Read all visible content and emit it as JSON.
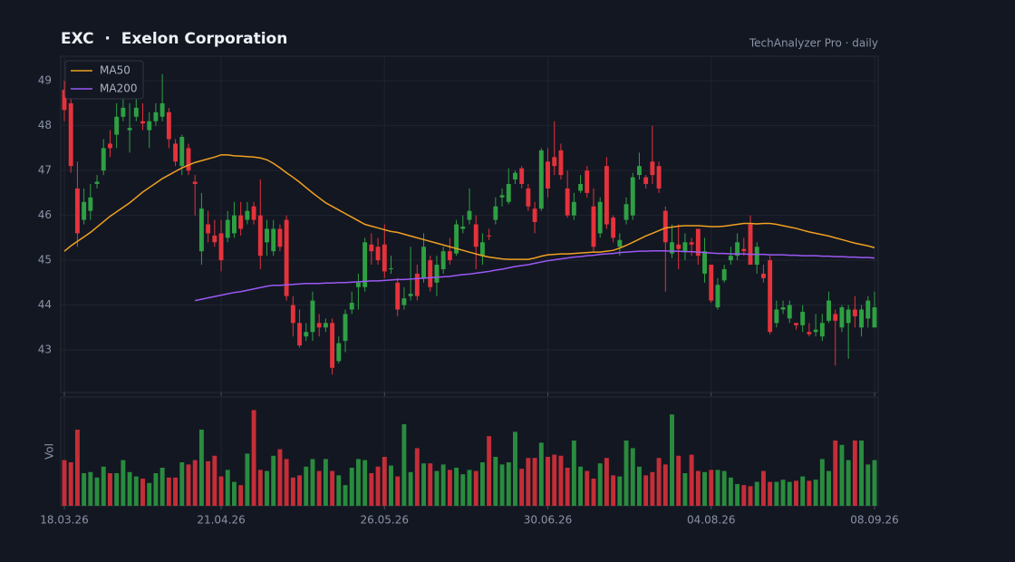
{
  "chart_data": {
    "type": "candlestick",
    "title": "EXC  ·  Exelon Corporation",
    "subtitle": "TechAnalyzer Pro · daily",
    "volume_label": "Vol",
    "up_color": "#2ea043",
    "down_color": "#e5323b",
    "ylim": [
      42.05,
      49.55
    ],
    "yticks": [
      43,
      44,
      45,
      46,
      47,
      48,
      49
    ],
    "vlim": [
      0,
      100
    ],
    "grid": true,
    "legend": "top-left",
    "categories": [
      "18.03.26",
      null,
      null,
      null,
      null,
      null,
      null,
      null,
      null,
      null,
      null,
      null,
      null,
      null,
      null,
      null,
      null,
      null,
      null,
      null,
      null,
      null,
      null,
      null,
      "21.04.26",
      null,
      null,
      null,
      null,
      null,
      null,
      null,
      null,
      null,
      null,
      null,
      null,
      null,
      null,
      null,
      null,
      null,
      null,
      null,
      null,
      null,
      null,
      null,
      null,
      "26.05.26",
      null,
      null,
      null,
      null,
      null,
      null,
      null,
      null,
      null,
      null,
      null,
      null,
      null,
      null,
      null,
      null,
      null,
      null,
      null,
      null,
      null,
      null,
      null,
      null,
      "30.06.26",
      null,
      null,
      null,
      null,
      null,
      null,
      null,
      null,
      null,
      null,
      null,
      null,
      null,
      null,
      null,
      null,
      null,
      null,
      null,
      null,
      null,
      null,
      null,
      null,
      "04.08.26",
      null,
      null,
      null,
      null,
      null,
      null,
      null,
      null,
      null,
      null,
      null,
      null,
      null,
      null,
      null,
      null,
      null,
      null,
      null,
      null,
      null,
      null,
      null,
      null,
      "08.09.26"
    ],
    "open": [
      48.8,
      48.5,
      46.6,
      45.9,
      46.1,
      46.7,
      47.0,
      47.6,
      47.8,
      48.2,
      47.9,
      48.2,
      48.1,
      47.9,
      48.1,
      48.2,
      48.3,
      47.6,
      47.1,
      47.5,
      46.75,
      45.2,
      45.8,
      45.55,
      45.6,
      45.5,
      45.6,
      46.0,
      45.9,
      46.2,
      46.0,
      45.4,
      45.2,
      45.7,
      45.9,
      44.0,
      43.6,
      43.3,
      43.4,
      43.6,
      43.5,
      43.6,
      42.75,
      43.2,
      43.9,
      44.4,
      44.4,
      45.35,
      45.3,
      45.35,
      44.8,
      44.5,
      44.0,
      44.2,
      44.7,
      44.6,
      45.0,
      44.5,
      44.8,
      45.2,
      45.15,
      45.7,
      45.9,
      45.8,
      45.1,
      45.55,
      45.9,
      46.4,
      46.3,
      46.8,
      47.05,
      46.6,
      46.15,
      46.15,
      47.2,
      47.3,
      47.45,
      46.6,
      46.0,
      46.55,
      47.0,
      46.2,
      45.6,
      47.1,
      45.95,
      45.3,
      45.9,
      46.0,
      46.9,
      46.85,
      47.2,
      47.1,
      46.1,
      45.15,
      45.35,
      45.2,
      45.4,
      45.7,
      44.7,
      44.9,
      43.95,
      44.55,
      45.0,
      45.1,
      45.25,
      45.8,
      44.9,
      44.7,
      45.0,
      43.6,
      43.9,
      43.7,
      43.6,
      43.55,
      43.4,
      43.4,
      43.3,
      43.65,
      43.8,
      43.5,
      43.6,
      43.9,
      43.5,
      43.7,
      43.5
    ],
    "high": [
      49.0,
      48.6,
      47.2,
      46.6,
      46.7,
      46.9,
      47.7,
      47.9,
      48.5,
      48.6,
      48.5,
      48.7,
      48.5,
      48.3,
      48.5,
      49.15,
      48.4,
      47.7,
      47.8,
      47.6,
      46.9,
      46.5,
      46.1,
      45.9,
      45.9,
      46.1,
      46.3,
      46.3,
      46.3,
      46.3,
      46.8,
      45.9,
      45.9,
      45.8,
      46.0,
      44.2,
      43.9,
      43.6,
      44.3,
      43.8,
      43.7,
      43.7,
      43.3,
      43.9,
      44.3,
      44.7,
      45.5,
      45.6,
      45.5,
      45.8,
      45.1,
      44.6,
      44.4,
      45.3,
      44.9,
      45.6,
      45.1,
      45.1,
      45.3,
      45.5,
      45.9,
      46.0,
      46.6,
      46.0,
      45.6,
      45.7,
      46.4,
      46.6,
      47.05,
      47.0,
      47.1,
      46.7,
      46.3,
      47.5,
      47.5,
      48.1,
      47.6,
      47.0,
      46.5,
      46.9,
      47.1,
      46.6,
      46.4,
      47.3,
      46.0,
      45.6,
      46.4,
      46.95,
      47.4,
      46.9,
      48.0,
      47.2,
      46.2,
      45.8,
      45.8,
      45.6,
      45.5,
      45.7,
      45.5,
      44.9,
      44.6,
      44.9,
      45.3,
      45.6,
      45.5,
      46.0,
      45.4,
      44.9,
      45.1,
      44.1,
      44.1,
      44.1,
      43.6,
      44.0,
      43.6,
      43.8,
      43.8,
      44.3,
      43.9,
      44.0,
      44.0,
      44.2,
      44.0,
      44.2,
      44.3
    ],
    "low": [
      48.1,
      46.95,
      45.3,
      45.8,
      45.9,
      46.6,
      46.9,
      47.3,
      47.5,
      48.1,
      47.4,
      48.1,
      47.9,
      47.5,
      48.0,
      48.1,
      47.5,
      47.1,
      46.9,
      46.9,
      46.0,
      44.9,
      45.4,
      45.3,
      44.75,
      45.4,
      45.5,
      45.55,
      45.8,
      45.8,
      44.8,
      45.1,
      45.1,
      45.2,
      44.1,
      43.3,
      43.05,
      43.2,
      43.2,
      43.3,
      43.4,
      42.45,
      42.7,
      42.95,
      43.8,
      43.9,
      44.3,
      44.9,
      44.9,
      44.6,
      44.7,
      43.75,
      43.9,
      44.1,
      44.1,
      44.5,
      44.3,
      44.2,
      44.7,
      44.9,
      45.1,
      45.6,
      45.8,
      44.8,
      44.9,
      45.45,
      45.8,
      46.2,
      46.25,
      46.7,
      46.6,
      46.1,
      45.6,
      46.1,
      46.4,
      46.9,
      46.8,
      45.95,
      45.9,
      46.5,
      46.4,
      45.2,
      45.5,
      45.7,
      45.4,
      45.1,
      45.8,
      45.9,
      46.8,
      46.6,
      46.7,
      46.5,
      44.3,
      45.05,
      44.8,
      45.0,
      45.1,
      44.9,
      44.5,
      44.05,
      43.9,
      44.5,
      44.9,
      45.0,
      45.1,
      44.9,
      44.7,
      44.5,
      43.35,
      43.5,
      43.8,
      43.6,
      43.45,
      43.4,
      43.3,
      43.3,
      43.2,
      43.6,
      42.65,
      43.4,
      42.8,
      43.5,
      43.3,
      43.5,
      43.5
    ],
    "close": [
      48.35,
      47.1,
      45.6,
      46.3,
      46.4,
      46.75,
      47.5,
      47.5,
      48.2,
      48.4,
      47.95,
      48.4,
      48.05,
      48.1,
      48.3,
      48.5,
      47.7,
      47.2,
      47.75,
      47.0,
      46.7,
      46.15,
      45.6,
      45.4,
      45.0,
      45.9,
      46.0,
      45.7,
      46.1,
      45.9,
      45.1,
      45.7,
      45.7,
      45.3,
      44.2,
      43.6,
      43.1,
      43.4,
      44.1,
      43.5,
      43.6,
      42.6,
      43.15,
      43.8,
      44.05,
      44.5,
      45.4,
      45.2,
      45.0,
      44.75,
      44.82,
      43.9,
      44.15,
      44.25,
      44.2,
      45.3,
      44.4,
      44.9,
      45.2,
      45.0,
      45.8,
      45.75,
      46.1,
      45.3,
      45.4,
      45.53,
      46.2,
      46.45,
      46.7,
      46.95,
      46.7,
      46.2,
      45.85,
      47.45,
      46.6,
      47.1,
      46.9,
      46.0,
      46.3,
      46.7,
      46.5,
      45.3,
      46.3,
      45.8,
      45.5,
      45.45,
      46.25,
      46.85,
      47.1,
      46.7,
      46.9,
      46.6,
      45.4,
      45.4,
      45.25,
      45.4,
      45.35,
      45.1,
      45.2,
      44.1,
      44.45,
      44.8,
      45.1,
      45.4,
      45.2,
      44.9,
      45.3,
      44.6,
      43.4,
      43.9,
      43.95,
      44.0,
      43.55,
      43.85,
      43.35,
      43.45,
      43.6,
      44.1,
      43.65,
      43.95,
      43.9,
      43.75,
      43.9,
      44.1,
      43.95
    ],
    "volume": [
      42,
      40,
      70,
      30,
      31,
      26,
      36,
      30,
      30,
      42,
      31,
      27,
      25,
      21,
      30,
      35,
      26,
      26,
      40,
      38,
      42,
      70,
      41,
      46,
      27,
      33,
      22,
      19,
      48,
      88,
      33,
      32,
      46,
      52,
      43,
      26,
      28,
      36,
      43,
      32,
      43,
      32,
      28,
      19,
      35,
      43,
      42,
      30,
      36,
      45,
      37,
      27,
      75,
      31,
      53,
      39,
      39,
      32,
      38,
      33,
      35,
      29,
      33,
      32,
      40,
      64,
      45,
      38,
      40,
      68,
      34,
      44,
      44,
      58,
      45,
      47,
      46,
      35,
      60,
      36,
      32,
      25,
      39,
      44,
      28,
      27,
      60,
      53,
      36,
      28,
      31,
      44,
      38,
      84,
      46,
      30,
      47,
      32,
      31,
      33,
      33,
      32,
      26,
      20,
      19,
      18,
      22,
      32,
      22,
      22,
      24,
      22,
      23,
      27,
      23,
      24,
      43,
      32,
      60,
      56,
      42,
      60,
      60,
      38,
      42
    ],
    "series": [
      {
        "name": "MA50",
        "color": "#f0a020",
        "values": [
          45.2,
          45.32,
          45.42,
          45.52,
          45.62,
          45.74,
          45.86,
          45.98,
          46.08,
          46.18,
          46.28,
          46.4,
          46.52,
          46.62,
          46.72,
          46.82,
          46.9,
          46.98,
          47.06,
          47.12,
          47.18,
          47.22,
          47.26,
          47.3,
          47.35,
          47.35,
          47.33,
          47.32,
          47.31,
          47.3,
          47.28,
          47.24,
          47.16,
          47.06,
          46.95,
          46.85,
          46.74,
          46.62,
          46.5,
          46.39,
          46.28,
          46.2,
          46.12,
          46.04,
          45.96,
          45.88,
          45.8,
          45.76,
          45.72,
          45.68,
          45.64,
          45.62,
          45.58,
          45.54,
          45.5,
          45.46,
          45.42,
          45.38,
          45.34,
          45.3,
          45.26,
          45.22,
          45.18,
          45.14,
          45.1,
          45.07,
          45.05,
          45.03,
          45.02,
          45.02,
          45.02,
          45.02,
          45.05,
          45.09,
          45.12,
          45.13,
          45.14,
          45.14,
          45.15,
          45.16,
          45.17,
          45.18,
          45.18,
          45.2,
          45.22,
          45.27,
          45.33,
          45.4,
          45.47,
          45.54,
          45.6,
          45.66,
          45.72,
          45.74,
          45.76,
          45.77,
          45.77,
          45.77,
          45.76,
          45.75,
          45.75,
          45.76,
          45.78,
          45.8,
          45.82,
          45.82,
          45.81,
          45.82,
          45.82,
          45.8,
          45.77,
          45.74,
          45.71,
          45.67,
          45.63,
          45.6,
          45.57,
          45.54,
          45.5,
          45.46,
          45.42,
          45.38,
          45.35,
          45.32,
          45.28
        ]
      },
      {
        "name": "MA200",
        "color": "#9b59f5",
        "values": [
          null,
          null,
          null,
          null,
          null,
          null,
          null,
          null,
          null,
          null,
          null,
          null,
          null,
          null,
          null,
          null,
          null,
          null,
          null,
          null,
          44.1,
          44.13,
          44.16,
          44.19,
          44.22,
          44.25,
          44.28,
          44.3,
          44.33,
          44.36,
          44.39,
          44.42,
          44.44,
          44.44,
          44.45,
          44.46,
          44.47,
          44.48,
          44.48,
          44.48,
          44.49,
          44.49,
          44.5,
          44.5,
          44.51,
          44.52,
          44.53,
          44.54,
          44.54,
          44.55,
          44.56,
          44.57,
          44.57,
          44.58,
          44.59,
          44.6,
          44.61,
          44.62,
          44.63,
          44.64,
          44.66,
          44.68,
          44.69,
          44.71,
          44.73,
          44.75,
          44.78,
          44.8,
          44.83,
          44.86,
          44.88,
          44.9,
          44.93,
          44.96,
          44.99,
          45.01,
          45.03,
          45.05,
          45.07,
          45.08,
          45.1,
          45.11,
          45.13,
          45.14,
          45.15,
          45.17,
          45.18,
          45.19,
          45.2,
          45.2,
          45.21,
          45.21,
          45.21,
          45.2,
          45.2,
          45.19,
          45.19,
          45.18,
          45.17,
          45.16,
          45.15,
          45.15,
          45.14,
          45.14,
          45.14,
          45.13,
          45.13,
          45.13,
          45.12,
          45.12,
          45.12,
          45.11,
          45.11,
          45.1,
          45.1,
          45.1,
          45.09,
          45.09,
          45.08,
          45.08,
          45.07,
          45.07,
          45.06,
          45.06,
          45.05
        ]
      }
    ]
  }
}
